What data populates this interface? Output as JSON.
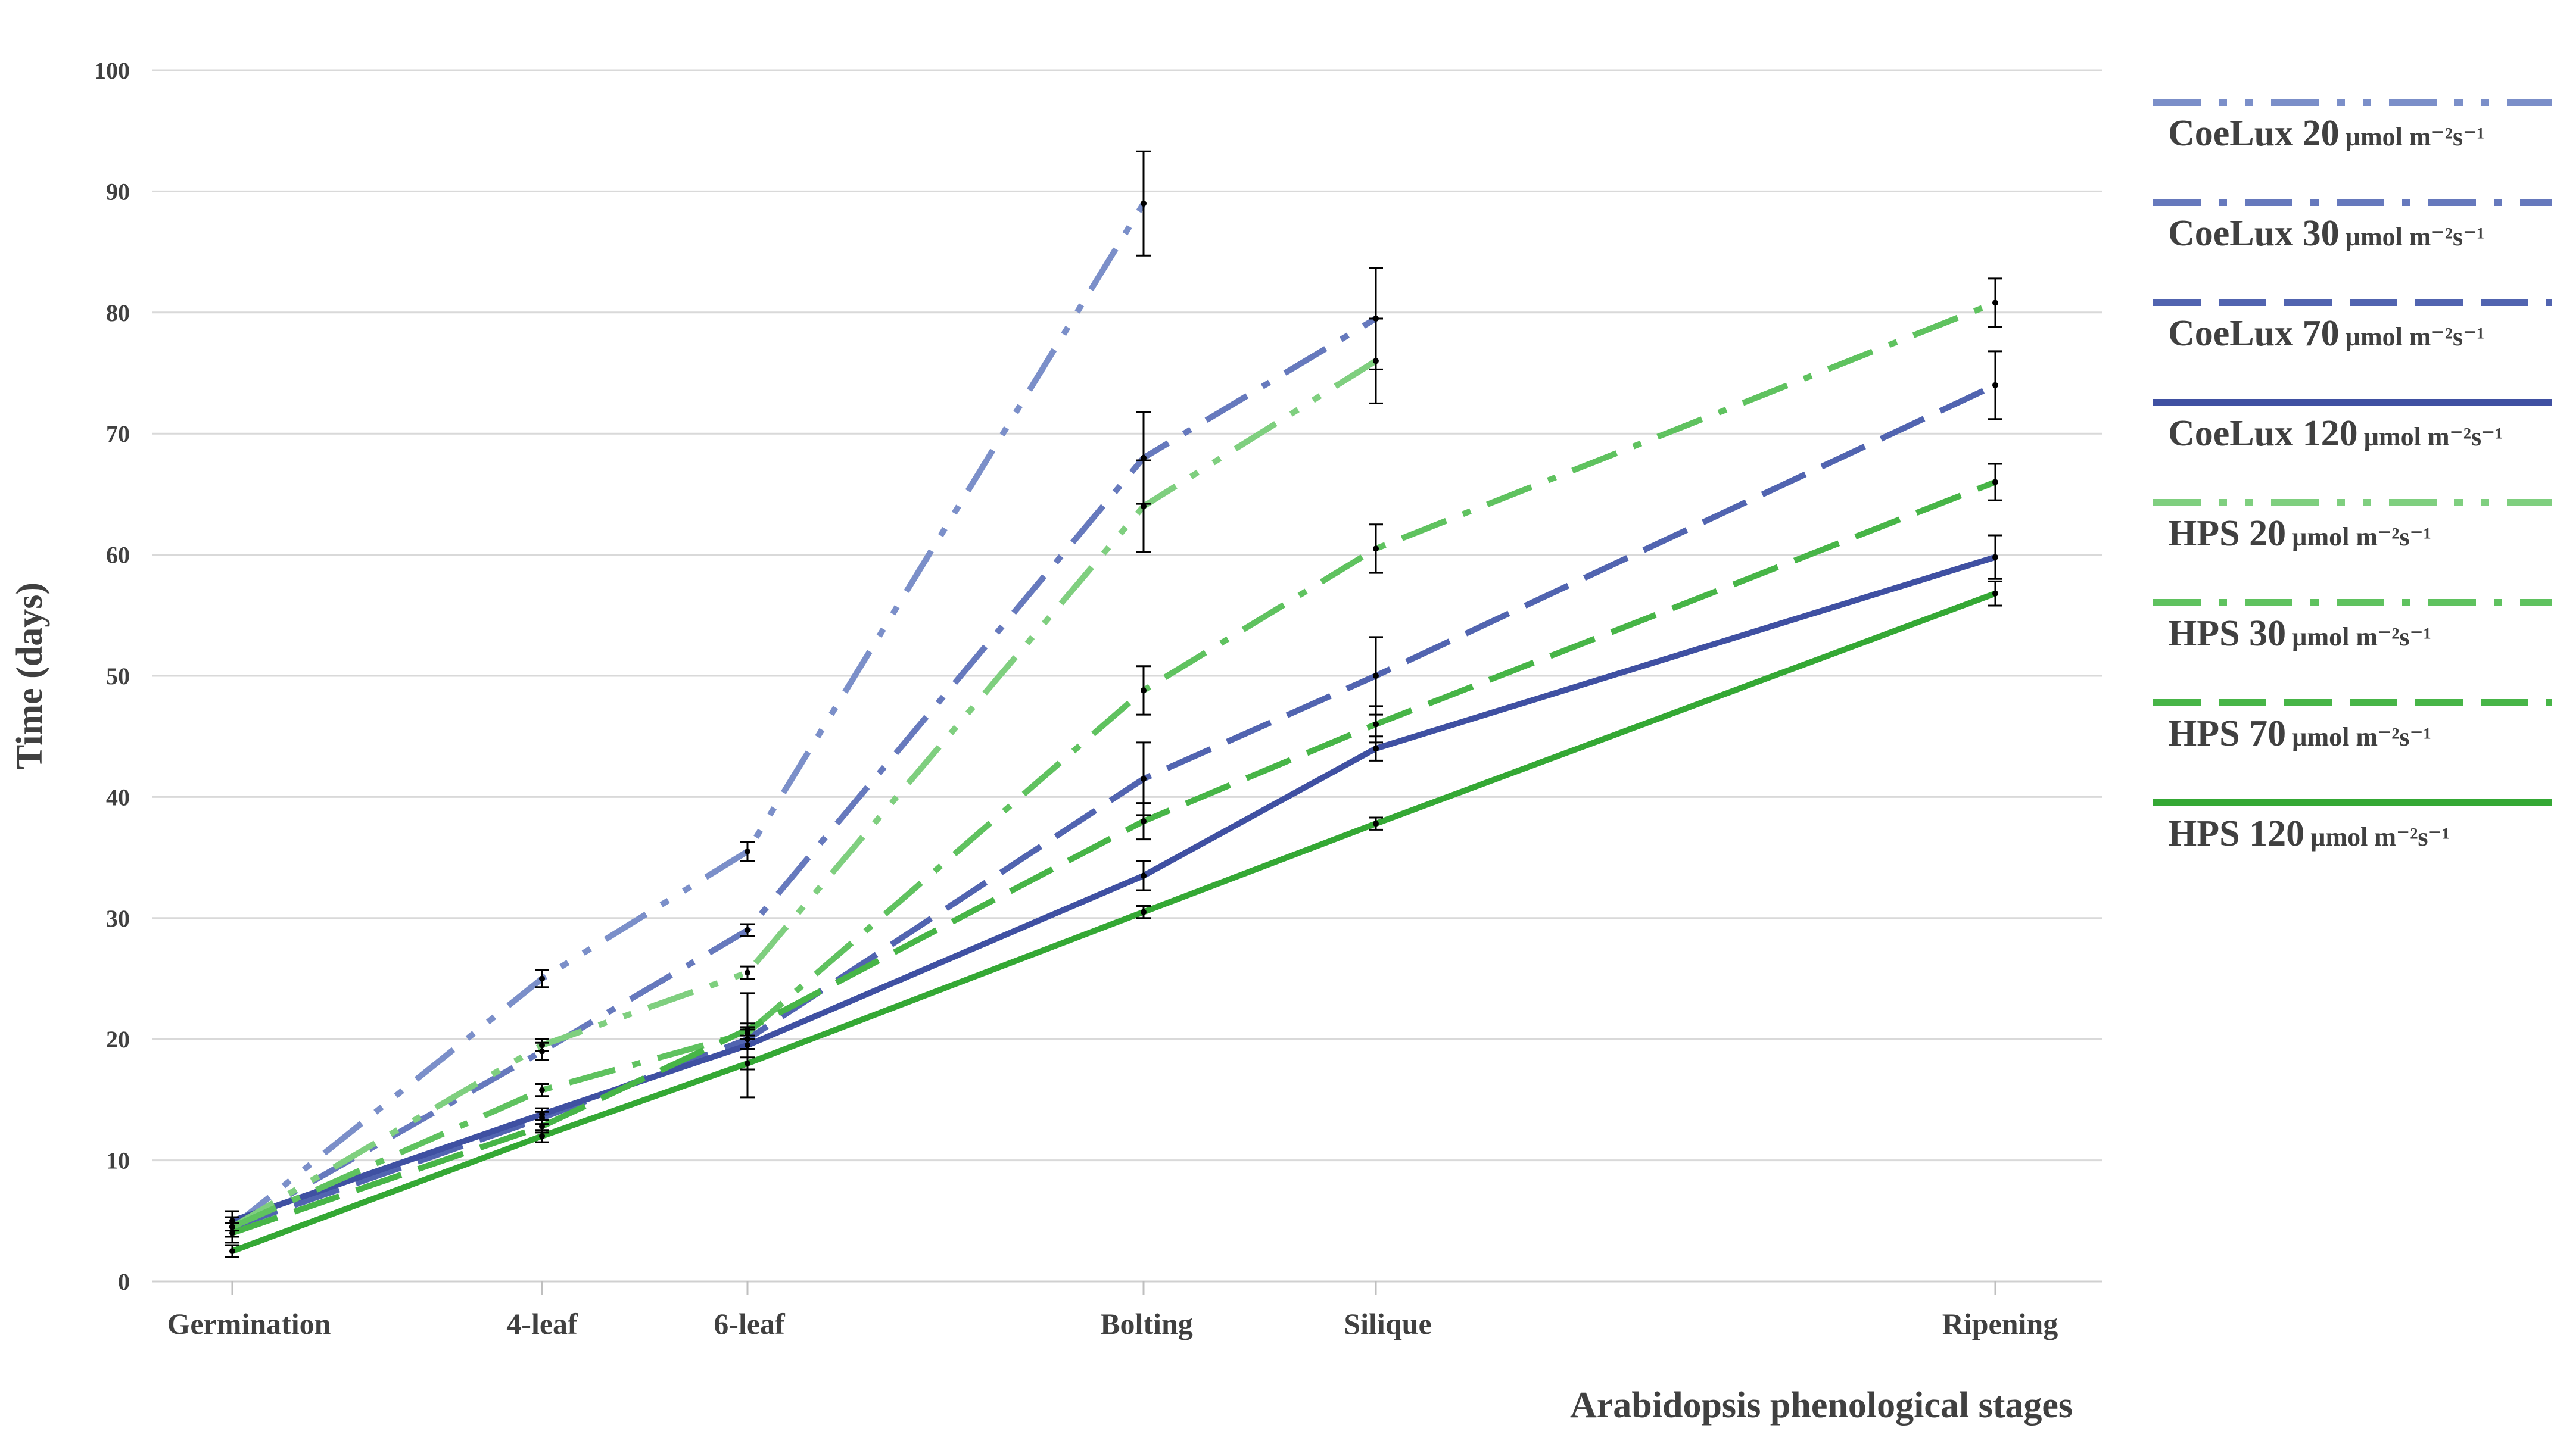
{
  "chart_data": {
    "type": "line",
    "xlabel": "Arabidopsis phenological stages",
    "ylabel": "Time (days)",
    "ylim": [
      0,
      100
    ],
    "yticks": [
      0,
      10,
      20,
      30,
      40,
      50,
      60,
      70,
      80,
      90,
      100
    ],
    "categories": [
      "Germination",
      "4-leaf",
      "6-leaf",
      "Bolting",
      "Silique",
      "Ripening"
    ],
    "grid": true,
    "legend_position": "right",
    "unit_label": "µmol m⁻²s⁻¹",
    "series": [
      {
        "name": "CoeLux 20",
        "color": "#7b8fc9",
        "dash": "dash-dot-dot",
        "values": [
          4.5,
          25.0,
          35.5,
          89.0,
          null,
          null
        ],
        "errors": [
          0.8,
          0.7,
          0.8,
          4.3,
          null,
          null
        ]
      },
      {
        "name": "CoeLux 30",
        "color": "#6679bd",
        "dash": "dash-dot",
        "values": [
          4.5,
          19.0,
          29.0,
          68.0,
          79.5,
          null
        ],
        "errors": [
          0.8,
          0.7,
          0.5,
          3.8,
          4.2,
          null
        ]
      },
      {
        "name": "CoeLux 70",
        "color": "#5164b0",
        "dash": "dash",
        "values": [
          4.5,
          13.5,
          20.0,
          41.5,
          50.0,
          74.0
        ],
        "errors": [
          0.8,
          0.5,
          0.8,
          3.0,
          3.2,
          2.8
        ]
      },
      {
        "name": "CoeLux 120",
        "color": "#3f50a2",
        "dash": "solid",
        "values": [
          5.0,
          13.8,
          19.5,
          33.5,
          44.0,
          59.8
        ],
        "errors": [
          0.8,
          0.5,
          4.3,
          1.2,
          1.0,
          1.8
        ]
      },
      {
        "name": "HPS 20",
        "color": "#7fcf7f",
        "dash": "dash-dot-dot",
        "values": [
          4.5,
          19.5,
          25.5,
          64.0,
          76.0,
          null
        ],
        "errors": [
          0.8,
          0.5,
          0.5,
          3.8,
          3.5,
          null
        ]
      },
      {
        "name": "HPS 30",
        "color": "#5fc25f",
        "dash": "dash-dot",
        "values": [
          4.5,
          15.8,
          20.5,
          48.8,
          60.5,
          80.8
        ],
        "errors": [
          0.8,
          0.5,
          0.5,
          2.0,
          2.0,
          2.0
        ]
      },
      {
        "name": "HPS 70",
        "color": "#47b547",
        "dash": "dash",
        "values": [
          4.0,
          12.8,
          20.8,
          38.0,
          46.0,
          66.0
        ],
        "errors": [
          0.8,
          0.5,
          0.5,
          1.5,
          1.5,
          1.5
        ]
      },
      {
        "name": "HPS 120",
        "color": "#34a834",
        "dash": "solid",
        "values": [
          2.5,
          12.0,
          18.0,
          30.5,
          37.8,
          56.8
        ],
        "errors": [
          0.5,
          0.5,
          0.5,
          0.5,
          0.5,
          1.0
        ]
      }
    ]
  }
}
